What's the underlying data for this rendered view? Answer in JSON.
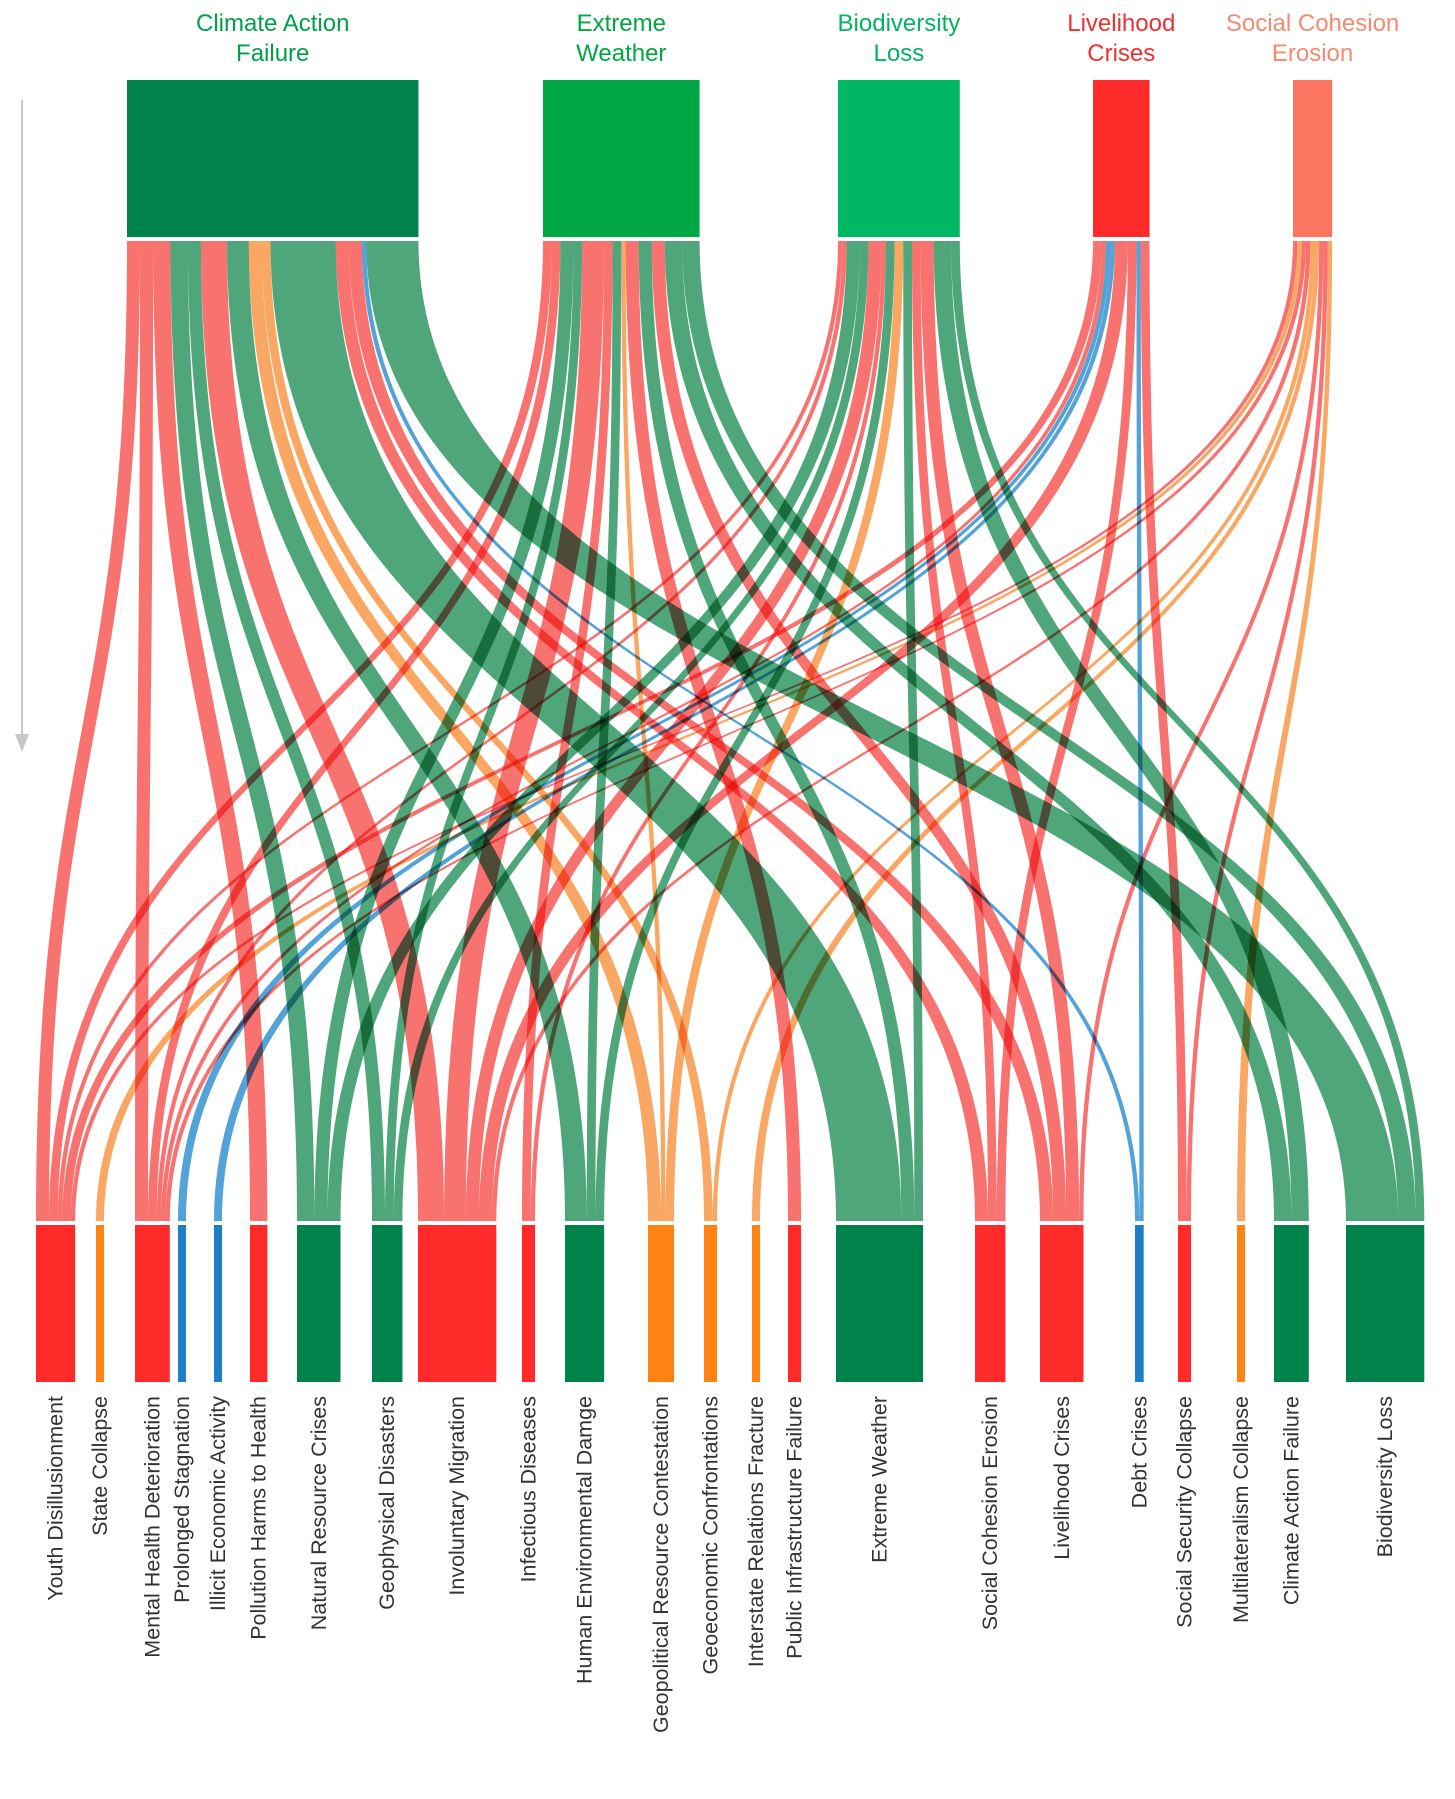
{
  "colors": {
    "dark_green": "#00834a",
    "green": "#00a843",
    "light_green": "#00b863",
    "red": "#ff2a2a",
    "salmon": "#fc7560",
    "orange": "#ff8313",
    "blue": "#1f7fc6",
    "flow_green": "#3c9c6c",
    "flow_red": "#f76360",
    "flow_orange": "#f89d52",
    "flow_blue": "#4098d4"
  },
  "sources": [
    {
      "id": "caf",
      "label_lines": [
        "Climate Action",
        "Failure"
      ],
      "color": "#00834a",
      "label_color": "#00a04a"
    },
    {
      "id": "ew",
      "label_lines": [
        "Extreme",
        "Weather"
      ],
      "color": "#00a843",
      "label_color": "#00a843"
    },
    {
      "id": "bl",
      "label_lines": [
        "Biodiversity",
        "Loss"
      ],
      "color": "#00b863",
      "label_color": "#00b460"
    },
    {
      "id": "lc",
      "label_lines": [
        "Livelihood",
        "Crises"
      ],
      "color": "#ff2a2a",
      "label_color": "#f03030"
    },
    {
      "id": "sce",
      "label_lines": [
        "Social Cohesion",
        "Erosion"
      ],
      "color": "#fc7560",
      "label_color": "#f58a72"
    }
  ],
  "targets": [
    {
      "id": "yd",
      "label": "Youth Disillusionment",
      "color": "#ff2a2a"
    },
    {
      "id": "sc",
      "label": "State Collapse",
      "color": "#ff8313"
    },
    {
      "id": "mhd",
      "label": "Mental Health Deterioration",
      "color": "#ff2a2a"
    },
    {
      "id": "ps",
      "label": "Prolonged Stagnation",
      "color": "#1f7fc6"
    },
    {
      "id": "iea",
      "label": "Illicit Economic Activity",
      "color": "#1f7fc6"
    },
    {
      "id": "phh",
      "label": "Pollution Harms to Health",
      "color": "#ff2a2a"
    },
    {
      "id": "nrc",
      "label": "Natural Resource Crises",
      "color": "#00834a"
    },
    {
      "id": "gd",
      "label": "Geophysical Disasters",
      "color": "#00834a"
    },
    {
      "id": "im",
      "label": "Involuntary Migration",
      "color": "#ff2a2a"
    },
    {
      "id": "id",
      "label": "Infectious Diseases",
      "color": "#ff2a2a"
    },
    {
      "id": "hed",
      "label": "Human Environmental Damge",
      "color": "#00834a"
    },
    {
      "id": "grc",
      "label": "Geopolitical Resource Contestation",
      "color": "#ff8313"
    },
    {
      "id": "gc",
      "label": "Geoeconomic Confrontations",
      "color": "#ff8313"
    },
    {
      "id": "irf",
      "label": "Interstate Relations Fracture",
      "color": "#ff8313"
    },
    {
      "id": "pif",
      "label": "Public Infrastructure Failure",
      "color": "#ff2a2a"
    },
    {
      "id": "ewt",
      "label": "Extreme Weather",
      "color": "#00834a"
    },
    {
      "id": "sce_t",
      "label": "Social Cohesion Erosion",
      "color": "#ff2a2a"
    },
    {
      "id": "lct",
      "label": "Livelihood Crises",
      "color": "#ff2a2a"
    },
    {
      "id": "dc",
      "label": "Debt Crises",
      "color": "#1f7fc6"
    },
    {
      "id": "ssc",
      "label": "Social Security Collapse",
      "color": "#ff2a2a"
    },
    {
      "id": "mc",
      "label": "Multilateralism Collapse",
      "color": "#ff8313"
    },
    {
      "id": "caf_t",
      "label": "Climate Action Failure",
      "color": "#00834a"
    },
    {
      "id": "blt",
      "label": "Biodiversity Loss",
      "color": "#00834a"
    }
  ],
  "flows": [
    {
      "from": "caf",
      "to": "yd",
      "value": 3,
      "color": "#f76360"
    },
    {
      "from": "caf",
      "to": "mhd",
      "value": 3,
      "color": "#f76360"
    },
    {
      "from": "caf",
      "to": "phh",
      "value": 4,
      "color": "#f76360"
    },
    {
      "from": "caf",
      "to": "nrc",
      "value": 4,
      "color": "#3c9c6c"
    },
    {
      "from": "caf",
      "to": "gd",
      "value": 3,
      "color": "#3c9c6c"
    },
    {
      "from": "caf",
      "to": "im",
      "value": 6,
      "color": "#f76360"
    },
    {
      "from": "caf",
      "to": "hed",
      "value": 5,
      "color": "#3c9c6c"
    },
    {
      "from": "caf",
      "to": "grc",
      "value": 3,
      "color": "#f89d52"
    },
    {
      "from": "caf",
      "to": "gc",
      "value": 2,
      "color": "#f89d52"
    },
    {
      "from": "caf",
      "to": "ewt",
      "value": 15,
      "color": "#3c9c6c"
    },
    {
      "from": "caf",
      "to": "sce_t",
      "value": 3,
      "color": "#f76360"
    },
    {
      "from": "caf",
      "to": "lct",
      "value": 3,
      "color": "#f76360"
    },
    {
      "from": "caf",
      "to": "dc",
      "value": 1,
      "color": "#4098d4"
    },
    {
      "from": "caf",
      "to": "blt",
      "value": 12,
      "color": "#3c9c6c"
    },
    {
      "from": "ew",
      "to": "yd",
      "value": 2,
      "color": "#f76360"
    },
    {
      "from": "ew",
      "to": "mhd",
      "value": 2,
      "color": "#f76360"
    },
    {
      "from": "ew",
      "to": "nrc",
      "value": 3,
      "color": "#3c9c6c"
    },
    {
      "from": "ew",
      "to": "gd",
      "value": 2,
      "color": "#3c9c6c"
    },
    {
      "from": "ew",
      "to": "im",
      "value": 5,
      "color": "#f76360"
    },
    {
      "from": "ew",
      "to": "id",
      "value": 2,
      "color": "#f76360"
    },
    {
      "from": "ew",
      "to": "hed",
      "value": 2,
      "color": "#3c9c6c"
    },
    {
      "from": "ew",
      "to": "grc",
      "value": 1,
      "color": "#f89d52"
    },
    {
      "from": "ew",
      "to": "pif",
      "value": 3,
      "color": "#f76360"
    },
    {
      "from": "ew",
      "to": "ewt",
      "value": 3,
      "color": "#3c9c6c"
    },
    {
      "from": "ew",
      "to": "lct",
      "value": 3,
      "color": "#f76360"
    },
    {
      "from": "ew",
      "to": "caf_t",
      "value": 4,
      "color": "#3c9c6c"
    },
    {
      "from": "ew",
      "to": "blt",
      "value": 4,
      "color": "#3c9c6c"
    },
    {
      "from": "bl",
      "to": "yd",
      "value": 1,
      "color": "#f76360"
    },
    {
      "from": "bl",
      "to": "mhd",
      "value": 1,
      "color": "#f76360"
    },
    {
      "from": "bl",
      "to": "nrc",
      "value": 3,
      "color": "#3c9c6c"
    },
    {
      "from": "bl",
      "to": "gd",
      "value": 2,
      "color": "#3c9c6c"
    },
    {
      "from": "bl",
      "to": "im",
      "value": 3,
      "color": "#f76360"
    },
    {
      "from": "bl",
      "to": "id",
      "value": 1,
      "color": "#f76360"
    },
    {
      "from": "bl",
      "to": "hed",
      "value": 2,
      "color": "#3c9c6c"
    },
    {
      "from": "bl",
      "to": "grc",
      "value": 2,
      "color": "#f89d52"
    },
    {
      "from": "bl",
      "to": "ewt",
      "value": 2,
      "color": "#3c9c6c"
    },
    {
      "from": "bl",
      "to": "sce_t",
      "value": 2,
      "color": "#f76360"
    },
    {
      "from": "bl",
      "to": "lct",
      "value": 3,
      "color": "#f76360"
    },
    {
      "from": "bl",
      "to": "caf_t",
      "value": 4,
      "color": "#3c9c6c"
    },
    {
      "from": "bl",
      "to": "blt",
      "value": 2,
      "color": "#3c9c6c"
    },
    {
      "from": "lc",
      "to": "yd",
      "value": 2,
      "color": "#f76360"
    },
    {
      "from": "lc",
      "to": "mhd",
      "value": 1,
      "color": "#f76360"
    },
    {
      "from": "lc",
      "to": "ps",
      "value": 1,
      "color": "#4098d4"
    },
    {
      "from": "lc",
      "to": "iea",
      "value": 1,
      "color": "#4098d4"
    },
    {
      "from": "lc",
      "to": "im",
      "value": 3,
      "color": "#f76360"
    },
    {
      "from": "lc",
      "to": "sce_t",
      "value": 2,
      "color": "#f76360"
    },
    {
      "from": "lc",
      "to": "dc",
      "value": 1,
      "color": "#4098d4"
    },
    {
      "from": "lc",
      "to": "ssc",
      "value": 2,
      "color": "#f76360"
    },
    {
      "from": "sce",
      "to": "yd",
      "value": 1,
      "color": "#f76360"
    },
    {
      "from": "sce",
      "to": "sc",
      "value": 1,
      "color": "#f89d52"
    },
    {
      "from": "sce",
      "to": "mhd",
      "value": 1,
      "color": "#f76360"
    },
    {
      "from": "sce",
      "to": "gc",
      "value": 1,
      "color": "#f89d52"
    },
    {
      "from": "sce",
      "to": "irf",
      "value": 1,
      "color": "#f89d52"
    },
    {
      "from": "sce",
      "to": "im",
      "value": 1,
      "color": "#f76360"
    },
    {
      "from": "sce",
      "to": "lct",
      "value": 1,
      "color": "#f76360"
    },
    {
      "from": "sce",
      "to": "ssc",
      "value": 1,
      "color": "#f76360"
    },
    {
      "from": "sce",
      "to": "mc",
      "value": 1,
      "color": "#f89d52"
    }
  ]
}
